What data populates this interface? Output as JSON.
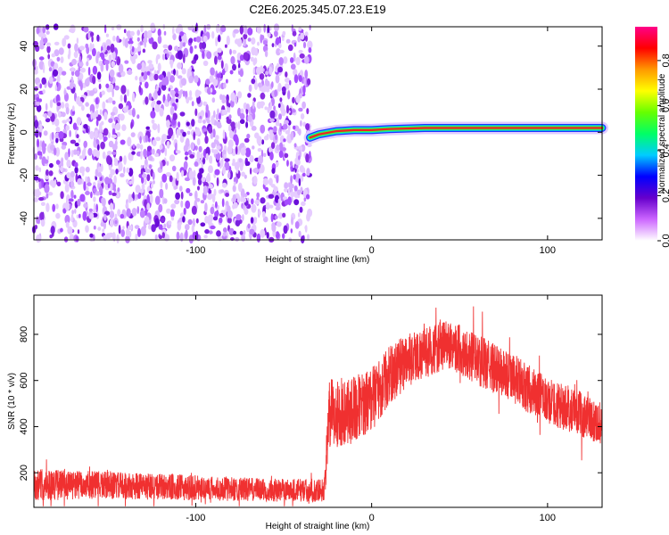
{
  "title": "C2E6.2025.345.07.23.E19",
  "chart_data": [
    {
      "type": "heatmap",
      "xlabel": "Height of straight line (km)",
      "ylabel": "Frequency (Hz)",
      "xlim": [
        -192,
        131
      ],
      "ylim": [
        -50,
        49
      ],
      "x_ticks": [
        -100,
        0,
        100
      ],
      "x_tick_labels": [
        "-100",
        "0",
        "100"
      ],
      "y_ticks": [
        -40,
        -20,
        0,
        20,
        40
      ],
      "y_tick_labels": [
        "-40",
        "-20",
        "0",
        "20",
        "40"
      ],
      "noise_region_x": [
        -192,
        -35
      ],
      "signal_line": {
        "x_start": -35,
        "x_end": 131,
        "points": [
          [
            -35,
            -2.5
          ],
          [
            -30,
            -1
          ],
          [
            -20,
            0.5
          ],
          [
            -10,
            1
          ],
          [
            0,
            1
          ],
          [
            10,
            1.5
          ],
          [
            30,
            2
          ],
          [
            60,
            2
          ],
          [
            100,
            2
          ],
          [
            131,
            2
          ]
        ]
      },
      "colorbar": {
        "label": "Normalized spectral amplitude",
        "range": [
          0,
          0.95
        ],
        "ticks": [
          0,
          0.2,
          0.4,
          0.6,
          0.8
        ],
        "tick_labels": [
          "0.0",
          "0.2",
          "0.4",
          "0.6",
          "0.8"
        ],
        "colors": [
          "#ffffff",
          "#cc66ff",
          "#6600cc",
          "#0000ff",
          "#00ccff",
          "#00ff66",
          "#66ff00",
          "#ffff00",
          "#ff9900",
          "#ff0000",
          "#ff0088"
        ]
      },
      "grid": false
    },
    {
      "type": "line",
      "xlabel": "Height of straight line (km)",
      "ylabel": "SNR (10 * v/v)",
      "xlim": [
        -192,
        131
      ],
      "ylim": [
        50,
        970
      ],
      "x_ticks": [
        -100,
        0,
        100
      ],
      "x_tick_labels": [
        "-100",
        "0",
        "100"
      ],
      "y_ticks": [
        200,
        400,
        600,
        800
      ],
      "y_tick_labels": [
        "200",
        "400",
        "600",
        "800"
      ],
      "series_color": "#f03030",
      "envelope": {
        "x": [
          -192,
          -150,
          -100,
          -60,
          -27,
          -24,
          -18,
          -10,
          0,
          10,
          20,
          30,
          45,
          60,
          80,
          100,
          115,
          131
        ],
        "mean": [
          150,
          145,
          135,
          125,
          125,
          450,
          460,
          480,
          520,
          620,
          690,
          720,
          760,
          690,
          610,
          510,
          470,
          410
        ],
        "spread": [
          70,
          60,
          55,
          50,
          50,
          160,
          150,
          140,
          140,
          130,
          120,
          110,
          110,
          110,
          110,
          100,
          100,
          90
        ]
      },
      "grid": false
    }
  ]
}
